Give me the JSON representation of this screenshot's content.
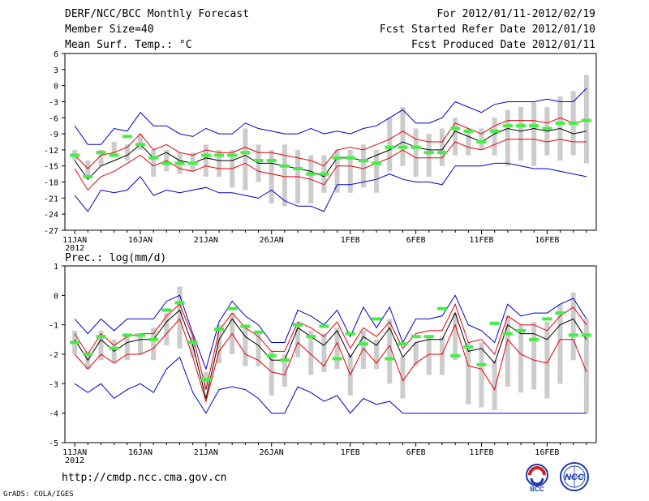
{
  "header": {
    "title": "DERF/NCC/BCC Monthly Forecast",
    "member_size": "Member Size=40",
    "variable": "Mean Surf. Temp.: °C",
    "period": "For 2012/01/11-2012/02/19",
    "started": "Fcst Started Refer Date 2012/01/10",
    "produced": "Fcst Produced Date 2012/01/11"
  },
  "footer": {
    "url": "http://cmdp.ncc.cma.gov.cn",
    "grads": "GrADS: COLA/IGES",
    "logo_bcc": "BCC",
    "logo_ncc": "NCC"
  },
  "colors": {
    "mean": "#000000",
    "spread": "#e8000a",
    "envelope": "#0000cc",
    "box": "#cccccc",
    "obs": "#44ee44"
  },
  "chart_data": [
    {
      "type": "line",
      "title": "Mean Surf. Temp.: °C",
      "xlabel": "",
      "ylabel": "°C",
      "x_tick_labels": [
        "11JAN",
        "16JAN",
        "21JAN",
        "26JAN",
        "1FEB",
        "6FEB",
        "11FEB",
        "16FEB"
      ],
      "x_tick_days": [
        0,
        5,
        10,
        15,
        21,
        26,
        31,
        36
      ],
      "year_label": "2012",
      "ylim": [
        -27,
        6
      ],
      "yticks": [
        6,
        3,
        0,
        -3,
        -6,
        -9,
        -12,
        -15,
        -18,
        -21,
        -24,
        -27
      ],
      "days": 40,
      "series": [
        {
          "name": "ensemble mean",
          "values": [
            -14,
            -17.5,
            -15,
            -14,
            -13,
            -11,
            -13.5,
            -12.5,
            -14,
            -14.5,
            -13.5,
            -14,
            -14,
            -13,
            -14.5,
            -14.5,
            -15,
            -15.5,
            -16,
            -17,
            -13.5,
            -13.5,
            -14,
            -13,
            -12,
            -10.5,
            -11.5,
            -12,
            -12,
            -8.5,
            -9.5,
            -10.5,
            -9,
            -8,
            -8.5,
            -8,
            -8.5,
            -8,
            -9,
            -8.5
          ]
        },
        {
          "name": "upper spread",
          "values": [
            -13,
            -15.5,
            -13,
            -12.5,
            -11.5,
            -9,
            -12,
            -11,
            -12.5,
            -13,
            -12,
            -12.5,
            -12.5,
            -11.5,
            -12.5,
            -12.5,
            -13,
            -13.5,
            -14,
            -15,
            -12,
            -11.5,
            -12,
            -11,
            -10,
            -8.5,
            -10,
            -10.5,
            -10.5,
            -7,
            -8,
            -9,
            -7.5,
            -6.5,
            -6.5,
            -6.5,
            -7,
            -6,
            -7,
            -6.5
          ]
        },
        {
          "name": "lower spread",
          "values": [
            -15.5,
            -19.5,
            -17,
            -16,
            -14.5,
            -13,
            -15,
            -14,
            -15.5,
            -16,
            -15,
            -15.5,
            -15.5,
            -14.5,
            -16,
            -16.5,
            -17,
            -17,
            -17.5,
            -18.5,
            -15,
            -15,
            -15.5,
            -14.5,
            -13.5,
            -12,
            -13.5,
            -13.5,
            -13.5,
            -10.5,
            -11.5,
            -12,
            -11,
            -10,
            -10,
            -10,
            -10.5,
            -10,
            -10.5,
            -10.5
          ]
        },
        {
          "name": "ensemble max",
          "values": [
            -7.5,
            -11,
            -11,
            -8,
            -8.5,
            -5,
            -7.5,
            -7.5,
            -9,
            -9.5,
            -8,
            -9,
            -9,
            -7,
            -8,
            -8.5,
            -9,
            -9,
            -8,
            -9,
            -8.5,
            -9,
            -8,
            -7.5,
            -6,
            -4.5,
            -7,
            -7,
            -6,
            -3,
            -4,
            -5,
            -3.5,
            -3,
            -3,
            -3,
            -2.5,
            -3,
            -3,
            -0.5
          ]
        },
        {
          "name": "ensemble min",
          "values": [
            -20.5,
            -23.5,
            -19.5,
            -20,
            -19.5,
            -17,
            -20.5,
            -19.5,
            -20,
            -19.5,
            -19,
            -20,
            -20,
            -20.5,
            -21,
            -19.5,
            -21.5,
            -22.5,
            -22.5,
            -23.5,
            -18.5,
            -18.5,
            -18,
            -17.5,
            -16.5,
            -17.5,
            -18,
            -18,
            -18.5,
            -15,
            -15,
            -15,
            -14.5,
            -14.5,
            -15,
            -15.5,
            -15.5,
            -16,
            -16.5,
            -17
          ]
        }
      ],
      "boxes": [
        [
          -14,
          -12
        ],
        [
          -17,
          -14
        ],
        [
          -15,
          -12
        ],
        [
          -13,
          -10.5
        ],
        [
          -14,
          -11
        ],
        [
          -12,
          -9
        ],
        [
          -17,
          -12
        ],
        [
          -16,
          -12
        ],
        [
          -16.5,
          -12.5
        ],
        [
          -16,
          -12.5
        ],
        [
          -17,
          -11
        ],
        [
          -17,
          -12
        ],
        [
          -19,
          -12
        ],
        [
          -19.5,
          -8
        ],
        [
          -18,
          -11
        ],
        [
          -22,
          -12
        ],
        [
          -22.5,
          -11
        ],
        [
          -22,
          -12
        ],
        [
          -22,
          -13
        ],
        [
          -20,
          -13
        ],
        [
          -20,
          -12
        ],
        [
          -20,
          -12
        ],
        [
          -19,
          -11
        ],
        [
          -20,
          -12
        ],
        [
          -16,
          -6
        ],
        [
          -15,
          -4
        ],
        [
          -17,
          -8
        ],
        [
          -17,
          -9
        ],
        [
          -15,
          -8
        ],
        [
          -13,
          -6
        ],
        [
          -13,
          -8
        ],
        [
          -12,
          -8
        ],
        [
          -13,
          -6
        ],
        [
          -15,
          -4.5
        ],
        [
          -14,
          -4
        ],
        [
          -15,
          -3
        ],
        [
          -13,
          -4
        ],
        [
          -14,
          -2
        ],
        [
          -13,
          -1
        ],
        [
          -14.5,
          2
        ]
      ],
      "observed": [
        -13,
        -17,
        -12.5,
        -13,
        -9.5,
        -11,
        -13.5,
        -14.5,
        -14.5,
        -14.5,
        -13,
        -13,
        -13,
        -12.5,
        -14,
        -14,
        -15,
        -15.5,
        -16.5,
        -16.5,
        -13.5,
        -13.5,
        -14,
        -14.5,
        -11.5,
        -11.5,
        -11.5,
        -12.5,
        -12.5,
        -8,
        -8.5,
        -10.5,
        -8.5,
        -7.5,
        -7.5,
        -7.5,
        -8,
        -7,
        -7,
        -6.5
      ]
    },
    {
      "type": "line",
      "title": "Prec.: log(mm/d)",
      "xlabel": "",
      "ylabel": "log(mm/d)",
      "x_tick_labels": [
        "11JAN",
        "16JAN",
        "21JAN",
        "26JAN",
        "1FEB",
        "6FEB",
        "11FEB",
        "16FEB"
      ],
      "x_tick_days": [
        0,
        5,
        10,
        15,
        21,
        26,
        31,
        36
      ],
      "year_label": "2012",
      "ylim": [
        -5,
        1
      ],
      "yticks": [
        1,
        0,
        -1,
        -2,
        -3,
        -4,
        -5
      ],
      "days": 40,
      "series": [
        {
          "name": "ensemble mean",
          "values": [
            -1.5,
            -2.2,
            -1.5,
            -1.9,
            -1.6,
            -1.5,
            -1.5,
            -0.9,
            -0.5,
            -1.7,
            -3.5,
            -1.5,
            -0.8,
            -1.4,
            -1.7,
            -2.2,
            -2.2,
            -1.1,
            -1.4,
            -1.7,
            -1.2,
            -2.1,
            -1.4,
            -1.7,
            -1.1,
            -2.1,
            -1.6,
            -1.5,
            -1.5,
            -0.6,
            -1.9,
            -1.8,
            -2.3,
            -1.0,
            -1.3,
            -1.3,
            -1.5,
            -1.0,
            -0.8,
            -1.5
          ]
        },
        {
          "name": "upper spread",
          "values": [
            -1.3,
            -2.0,
            -1.3,
            -1.7,
            -1.4,
            -1.3,
            -1.3,
            -0.7,
            -0.3,
            -1.4,
            -3.2,
            -1.2,
            -0.6,
            -1.1,
            -1.4,
            -1.9,
            -1.9,
            -0.9,
            -1.1,
            -1.4,
            -0.9,
            -1.8,
            -1.1,
            -1.4,
            -0.9,
            -1.8,
            -1.3,
            -1.2,
            -1.2,
            -0.3,
            -1.6,
            -1.5,
            -2.0,
            -0.7,
            -1.0,
            -1.0,
            -1.2,
            -0.7,
            -0.4,
            -1.0
          ]
        },
        {
          "name": "lower spread",
          "values": [
            -2.0,
            -2.5,
            -2.0,
            -2.3,
            -2.0,
            -2.0,
            -1.8,
            -1.3,
            -0.8,
            -2.1,
            -3.6,
            -1.9,
            -1.3,
            -2.0,
            -2.2,
            -2.6,
            -2.7,
            -1.6,
            -2.0,
            -2.4,
            -1.6,
            -2.7,
            -1.8,
            -2.3,
            -1.7,
            -2.9,
            -2.3,
            -2.0,
            -2.0,
            -1.0,
            -2.4,
            -2.5,
            -3.2,
            -1.5,
            -2.0,
            -2.2,
            -2.3,
            -1.5,
            -1.5,
            -2.6
          ]
        },
        {
          "name": "ensemble max",
          "values": [
            -0.8,
            -1.3,
            -0.8,
            -1.2,
            -0.8,
            -0.8,
            -0.8,
            -0.2,
            0.0,
            -1.3,
            -2.5,
            -0.9,
            -0.2,
            -0.7,
            -1.0,
            -1.6,
            -1.6,
            -0.5,
            -0.7,
            -1.0,
            -0.5,
            -1.4,
            -0.4,
            -1.1,
            -0.4,
            -1.6,
            -0.8,
            -0.8,
            -0.7,
            0.0,
            -1.0,
            -1.2,
            -1.6,
            -0.3,
            -0.7,
            -0.6,
            -0.6,
            -0.3,
            -0.1,
            -0.8
          ]
        },
        {
          "name": "ensemble min",
          "values": [
            -3.0,
            -3.3,
            -3.0,
            -3.5,
            -3.2,
            -3.0,
            -3.3,
            -2.5,
            -2.1,
            -3.3,
            -4.0,
            -3.2,
            -3.1,
            -3.2,
            -3.5,
            -4.0,
            -4.0,
            -3.1,
            -3.3,
            -3.6,
            -3.4,
            -4.0,
            -3.5,
            -3.7,
            -3.6,
            -4.0,
            -4.0,
            -4.0,
            -4.0,
            -4.0,
            -4.0,
            -4.0,
            -4.0,
            -4.0,
            -4.0,
            -4.0,
            -4.0,
            -4.0,
            -4.0,
            -4.0
          ]
        }
      ],
      "boxes": [
        [
          -2.0,
          -1.2
        ],
        [
          -2.5,
          -1.9
        ],
        [
          -2.2,
          -1.2
        ],
        [
          -2.3,
          -1.5
        ],
        [
          -2.2,
          -1.3
        ],
        [
          -2.0,
          -1.3
        ],
        [
          -2.2,
          -1.1
        ],
        [
          -1.7,
          -0.6
        ],
        [
          -1.8,
          0.3
        ],
        [
          -2.1,
          -1.4
        ],
        [
          -3.2,
          -2.6
        ],
        [
          -2.3,
          -1.0
        ],
        [
          -2.0,
          -0.6
        ],
        [
          -2.4,
          -1.0
        ],
        [
          -2.4,
          -1.2
        ],
        [
          -3.4,
          -1.9
        ],
        [
          -3.1,
          -2.0
        ],
        [
          -2.1,
          -1.0
        ],
        [
          -2.7,
          -1.2
        ],
        [
          -2.6,
          -1.3
        ],
        [
          -2.5,
          -1.1
        ],
        [
          -3.4,
          -2.0
        ],
        [
          -2.5,
          -1.2
        ],
        [
          -2.5,
          -1.5
        ],
        [
          -3.0,
          -0.8
        ],
        [
          -3.5,
          -2.1
        ],
        [
          -2.4,
          -1.6
        ],
        [
          -2.7,
          -1.4
        ],
        [
          -2.7,
          -1.4
        ],
        [
          -2.2,
          -0.6
        ],
        [
          -3.7,
          -1.6
        ],
        [
          -3.8,
          -1.6
        ],
        [
          -3.9,
          -2.2
        ],
        [
          -3.1,
          -0.7
        ],
        [
          -3.3,
          -1.0
        ],
        [
          -3.2,
          -0.9
        ],
        [
          -3.5,
          -0.9
        ],
        [
          -3.0,
          -0.3
        ],
        [
          -2.2,
          0.1
        ],
        [
          -4.0,
          -0.8
        ]
      ],
      "observed": [
        -1.6,
        -2.0,
        -1.4,
        -1.8,
        -1.35,
        -1.35,
        -1.5,
        -0.5,
        -0.25,
        -1.6,
        -2.85,
        -1.15,
        -0.45,
        -1.05,
        -1.25,
        -2.05,
        -2.2,
        -1.0,
        -1.4,
        -1.05,
        -2.15,
        -1.3,
        -1.65,
        -0.8,
        -2.15,
        -1.65,
        -1.4,
        -1.4,
        -0.45,
        -2.05,
        -1.75,
        -2.35,
        -0.95,
        -1.3,
        -1.2,
        -1.5,
        -0.8,
        -0.6,
        -1.35,
        -1.35
      ]
    }
  ]
}
